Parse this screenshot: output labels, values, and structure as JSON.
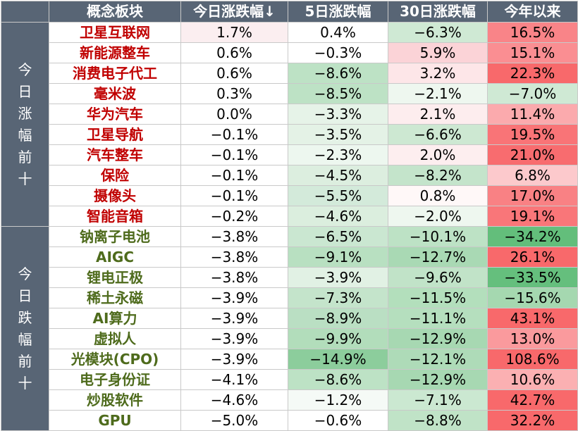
{
  "headers": {
    "blank": "",
    "name": "概念板块",
    "day": "今日涨跌幅↓",
    "d5": "5日涨跌幅",
    "d30": "30日涨跌幅",
    "ytd": "今年以来"
  },
  "groups": [
    {
      "label_chars": [
        "今",
        "日",
        "涨",
        "幅",
        "前",
        "十"
      ],
      "type": "up",
      "rows": [
        {
          "name": "卫星互联网",
          "day": "1.7%",
          "d5": "0.4%",
          "d30": "−6.3%",
          "ytd": "16.5%",
          "colors": {
            "day": "#fbeef0",
            "d5": "#ffffff",
            "d30": "#cfe9d4",
            "ytd": "#f98488"
          }
        },
        {
          "name": "新能源整车",
          "day": "0.6%",
          "d5": "−0.3%",
          "d30": "5.9%",
          "ytd": "15.1%",
          "colors": {
            "day": "#ffffff",
            "d5": "#ffffff",
            "d30": "#fbd3d7",
            "ytd": "#fa8e92"
          }
        },
        {
          "name": "消费电子代工",
          "day": "0.6%",
          "d5": "−8.6%",
          "d30": "3.2%",
          "ytd": "22.3%",
          "colors": {
            "day": "#ffffff",
            "d5": "#bde2c5",
            "d30": "#fde6e8",
            "ytd": "#f8696b"
          }
        },
        {
          "name": "毫米波",
          "day": "0.3%",
          "d5": "−8.5%",
          "d30": "−2.1%",
          "ytd": "−7.0%",
          "colors": {
            "day": "#ffffff",
            "d5": "#bde2c5",
            "d30": "#eef7ef",
            "ytd": "#cfe9d4"
          }
        },
        {
          "name": "华为汽车",
          "day": "0.0%",
          "d5": "−3.3%",
          "d30": "2.1%",
          "ytd": "11.4%",
          "colors": {
            "day": "#ffffff",
            "d5": "#e6f3e8",
            "d30": "#fdedee",
            "ytd": "#fbaaad"
          }
        },
        {
          "name": "卫星导航",
          "day": "−0.1%",
          "d5": "−3.5%",
          "d30": "−6.6%",
          "ytd": "19.5%",
          "colors": {
            "day": "#ffffff",
            "d5": "#e4f2e6",
            "d30": "#cde8d2",
            "ytd": "#f97477"
          }
        },
        {
          "name": "汽车整车",
          "day": "−0.1%",
          "d5": "−2.3%",
          "d30": "2.0%",
          "ytd": "21.0%",
          "colors": {
            "day": "#ffffff",
            "d5": "#edf7ef",
            "d30": "#fdeeef",
            "ytd": "#f86c6f"
          }
        },
        {
          "name": "保险",
          "day": "−0.1%",
          "d5": "−4.5%",
          "d30": "−8.2%",
          "ytd": "6.8%",
          "colors": {
            "day": "#ffffff",
            "d5": "#dceedf",
            "d30": "#c4e4cb",
            "ytd": "#fcc9cc"
          }
        },
        {
          "name": "摄像头",
          "day": "−0.1%",
          "d5": "−5.5%",
          "d30": "0.8%",
          "ytd": "17.0%",
          "colors": {
            "day": "#ffffff",
            "d5": "#d3eada",
            "d30": "#fff8f8",
            "ytd": "#f98184"
          }
        },
        {
          "name": "智能音箱",
          "day": "−0.2%",
          "d5": "−4.6%",
          "d30": "−2.0%",
          "ytd": "19.1%",
          "colors": {
            "day": "#ffffff",
            "d5": "#dbeede",
            "d30": "#eef7ef",
            "ytd": "#f97679"
          }
        }
      ]
    },
    {
      "label_chars": [
        "今",
        "日",
        "跌",
        "幅",
        "前",
        "十"
      ],
      "type": "down",
      "rows": [
        {
          "name": "钠离子电池",
          "day": "−3.8%",
          "d5": "−6.5%",
          "d30": "−10.1%",
          "ytd": "−34.2%",
          "colors": {
            "day": "#ffffff",
            "d5": "#cae7d1",
            "d30": "#bde2c5",
            "ytd": "#63be7b"
          }
        },
        {
          "name": "AIGC",
          "day": "−3.8%",
          "d5": "−9.1%",
          "d30": "−12.7%",
          "ytd": "26.1%",
          "colors": {
            "day": "#ffffff",
            "d5": "#b8e0c1",
            "d30": "#a9d9b4",
            "ytd": "#f8696b"
          }
        },
        {
          "name": "锂电正极",
          "day": "−3.8%",
          "d5": "−3.9%",
          "d30": "−9.6%",
          "ytd": "−33.5%",
          "colors": {
            "day": "#ffffff",
            "d5": "#e1f1e4",
            "d30": "#c1e3c8",
            "ytd": "#65bf7d"
          }
        },
        {
          "name": "稀土永磁",
          "day": "−3.9%",
          "d5": "−7.3%",
          "d30": "−11.5%",
          "ytd": "−15.6%",
          "colors": {
            "day": "#ffffff",
            "d5": "#c4e4cb",
            "d30": "#b3dfbc",
            "ytd": "#a5d8b0"
          }
        },
        {
          "name": "AI算力",
          "day": "−3.9%",
          "d5": "−8.9%",
          "d30": "−11.1%",
          "ytd": "43.1%",
          "colors": {
            "day": "#ffffff",
            "d5": "#badfc3",
            "d30": "#b5dfbe",
            "ytd": "#f8696b"
          }
        },
        {
          "name": "虚拟人",
          "day": "−3.9%",
          "d5": "−9.9%",
          "d30": "−12.9%",
          "ytd": "13.0%",
          "colors": {
            "day": "#ffffff",
            "d5": "#b2ddbb",
            "d30": "#a7d8b2",
            "ytd": "#fa9a9d"
          }
        },
        {
          "name": "光模块(CPO)",
          "day": "−3.9%",
          "d5": "−14.9%",
          "d30": "−12.1%",
          "ytd": "108.6%",
          "colors": {
            "day": "#ffffff",
            "d5": "#8ccd9c",
            "d30": "#aedbb8",
            "ytd": "#f8696b"
          }
        },
        {
          "name": "电子身份证",
          "day": "−4.1%",
          "d5": "−8.6%",
          "d30": "−12.9%",
          "ytd": "10.6%",
          "colors": {
            "day": "#ffffff",
            "d5": "#bde2c5",
            "d30": "#a7d8b2",
            "ytd": "#fbb0b2"
          }
        },
        {
          "name": "炒股软件",
          "day": "−4.6%",
          "d5": "−1.2%",
          "d30": "−7.1%",
          "ytd": "42.7%",
          "colors": {
            "day": "#ffffff",
            "d5": "#f5faf6",
            "d30": "#cbe8d1",
            "ytd": "#f8696b"
          }
        },
        {
          "name": "GPU",
          "day": "−5.0%",
          "d5": "−0.6%",
          "d30": "−8.8%",
          "ytd": "32.2%",
          "colors": {
            "day": "#ffffff",
            "d5": "#ffffff",
            "d30": "#c0e3c7",
            "ytd": "#f8696b"
          }
        }
      ]
    }
  ]
}
